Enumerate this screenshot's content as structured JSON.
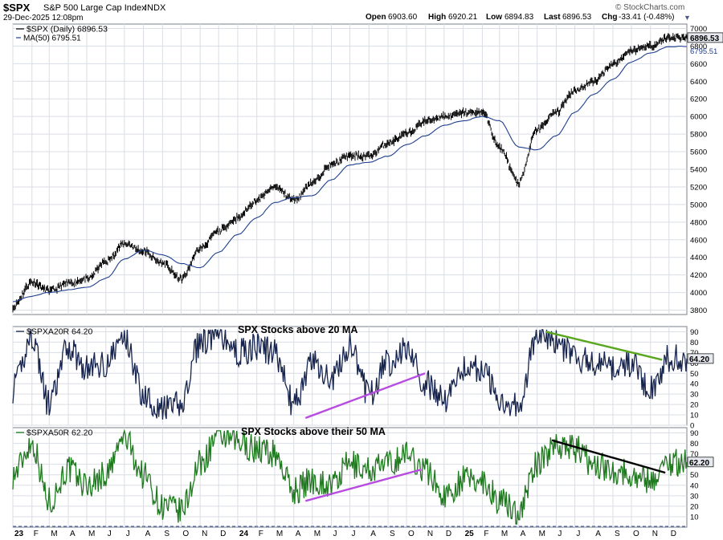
{
  "header": {
    "symbol": "$SPX",
    "name": "S&P 500 Large Cap Index",
    "exchange": "INDX",
    "datetime": "29-Dec-2025 12:08pm",
    "open_label": "Open",
    "open": "6903.60",
    "high_label": "High",
    "high": "6920.21",
    "low_label": "Low",
    "low": "6894.83",
    "last_label": "Last",
    "last": "6896.53",
    "chg_label": "Chg",
    "chg": "-33.41 (-0.48%)",
    "brand": "© StockCharts.com"
  },
  "colors": {
    "price": "#000000",
    "ma": "#1f3f8f",
    "breadth20": "#16244e",
    "breadth50": "#1f7a1f",
    "trend_purple": "#b84be0",
    "trend_green": "#5aa61e",
    "trend_black": "#000000",
    "grid": "#d9dde4",
    "label_fill": "#e6e9ef"
  },
  "chart_data": [
    {
      "type": "line",
      "panel": "price",
      "legend_main": "$SPX (Daily) 6896.53",
      "legend_ma": "MA(50) 6795.51",
      "last_value_label": "6896.53",
      "ma_value_label": "6795.51",
      "ylim": [
        3750,
        7050
      ],
      "yticks": [
        "3800",
        "4000",
        "4200",
        "4400",
        "4600",
        "4800",
        "5000",
        "5200",
        "5400",
        "5600",
        "5800",
        "6000",
        "6200",
        "6400",
        "6600",
        "6800",
        "7000"
      ],
      "x": [
        "2023-01",
        "2023-02",
        "2023-03",
        "2023-04",
        "2023-05",
        "2023-06",
        "2023-07",
        "2023-08",
        "2023-09",
        "2023-10",
        "2023-11",
        "2023-12",
        "2024-01",
        "2024-02",
        "2024-03",
        "2024-04",
        "2024-05",
        "2024-06",
        "2024-07",
        "2024-08",
        "2024-09",
        "2024-10",
        "2024-11",
        "2024-12",
        "2025-01",
        "2025-02",
        "2025-03",
        "2025-04",
        "2025-05",
        "2025-06",
        "2025-07",
        "2025-08",
        "2025-09",
        "2025-10",
        "2025-11",
        "2025-12"
      ],
      "series": [
        {
          "values": [
            3840,
            4120,
            4020,
            4110,
            4150,
            4350,
            4560,
            4470,
            4330,
            4150,
            4500,
            4700,
            4850,
            5050,
            5200,
            5050,
            5250,
            5450,
            5550,
            5550,
            5700,
            5800,
            5950,
            6000,
            6040,
            6050,
            5650,
            5250,
            5850,
            6050,
            6300,
            6400,
            6600,
            6750,
            6800,
            6896
          ]
        },
        {
          "name": "MA(50)",
          "values": [
            3900,
            3960,
            4000,
            4030,
            4060,
            4160,
            4380,
            4480,
            4430,
            4330,
            4280,
            4460,
            4660,
            4850,
            5020,
            5080,
            5100,
            5280,
            5450,
            5480,
            5550,
            5680,
            5780,
            5900,
            5950,
            6000,
            5950,
            5650,
            5620,
            5780,
            6050,
            6250,
            6420,
            6620,
            6720,
            6795
          ]
        }
      ]
    },
    {
      "type": "line",
      "panel": "breadth20",
      "title": "SPX Stocks above 20 MA",
      "legend": "$SPXA20R 64.20",
      "last_value_label": "64.20",
      "ylim": [
        0,
        95
      ],
      "yticks": [
        "0",
        "10",
        "20",
        "30",
        "40",
        "50",
        "60",
        "70",
        "80",
        "90"
      ],
      "x": [
        "2023-01",
        "2023-02",
        "2023-03",
        "2023-04",
        "2023-05",
        "2023-06",
        "2023-07",
        "2023-08",
        "2023-09",
        "2023-10",
        "2023-11",
        "2023-12",
        "2024-01",
        "2024-02",
        "2024-03",
        "2024-04",
        "2024-05",
        "2024-06",
        "2024-07",
        "2024-08",
        "2024-09",
        "2024-10",
        "2024-11",
        "2024-12",
        "2025-01",
        "2025-02",
        "2025-03",
        "2025-04",
        "2025-05",
        "2025-06",
        "2025-07",
        "2025-08",
        "2025-09",
        "2025-10",
        "2025-11",
        "2025-12"
      ],
      "series": [
        {
          "values": [
            35,
            85,
            20,
            75,
            55,
            60,
            85,
            30,
            15,
            20,
            80,
            88,
            70,
            75,
            70,
            20,
            60,
            45,
            75,
            30,
            60,
            75,
            40,
            25,
            55,
            55,
            25,
            20,
            85,
            80,
            65,
            60,
            55,
            60,
            35,
            64.2
          ]
        }
      ],
      "trendlines": [
        {
          "color": "trend_purple",
          "from": {
            "x": "2024-04-20",
            "y": 7
          },
          "to": {
            "x": "2024-10-31",
            "y": 50
          }
        },
        {
          "color": "trend_green",
          "from": {
            "x": "2025-05-15",
            "y": 90
          },
          "to": {
            "x": "2025-11-20",
            "y": 63
          }
        }
      ]
    },
    {
      "type": "line",
      "panel": "breadth50",
      "title": "SPX Stocks above their 50 MA",
      "legend": "$SPXA50R 62.20",
      "last_value_label": "62.20",
      "ylim": [
        0,
        95
      ],
      "yticks": [
        "10",
        "20",
        "30",
        "40",
        "50",
        "60",
        "70",
        "80",
        "90"
      ],
      "x": [
        "2023-01",
        "2023-02",
        "2023-03",
        "2023-04",
        "2023-05",
        "2023-06",
        "2023-07",
        "2023-08",
        "2023-09",
        "2023-10",
        "2023-11",
        "2023-12",
        "2024-01",
        "2024-02",
        "2024-03",
        "2024-04",
        "2024-05",
        "2024-06",
        "2024-07",
        "2024-08",
        "2024-09",
        "2024-10",
        "2024-11",
        "2024-12",
        "2025-01",
        "2025-02",
        "2025-03",
        "2025-04",
        "2025-05",
        "2025-06",
        "2025-07",
        "2025-08",
        "2025-09",
        "2025-10",
        "2025-11",
        "2025-12"
      ],
      "series": [
        {
          "values": [
            50,
            80,
            25,
            55,
            40,
            50,
            85,
            50,
            20,
            15,
            60,
            88,
            80,
            75,
            70,
            35,
            45,
            40,
            60,
            55,
            60,
            70,
            55,
            30,
            45,
            45,
            25,
            15,
            60,
            80,
            75,
            60,
            55,
            50,
            45,
            62.2
          ]
        }
      ],
      "trendlines": [
        {
          "color": "trend_purple",
          "from": {
            "x": "2024-04-20",
            "y": 25
          },
          "to": {
            "x": "2024-10-25",
            "y": 55
          }
        },
        {
          "color": "trend_black",
          "from": {
            "x": "2025-05-25",
            "y": 83
          },
          "to": {
            "x": "2025-11-25",
            "y": 52
          }
        }
      ]
    }
  ],
  "x_axis": {
    "labels": [
      {
        "d": "2023-01",
        "t": "23",
        "bold": true
      },
      {
        "d": "2023-02",
        "t": "F"
      },
      {
        "d": "2023-03",
        "t": "M"
      },
      {
        "d": "2023-04",
        "t": "A"
      },
      {
        "d": "2023-05",
        "t": "M"
      },
      {
        "d": "2023-06",
        "t": "J"
      },
      {
        "d": "2023-07",
        "t": "J"
      },
      {
        "d": "2023-08",
        "t": "A"
      },
      {
        "d": "2023-09",
        "t": "S"
      },
      {
        "d": "2023-10",
        "t": "O"
      },
      {
        "d": "2023-11",
        "t": "N"
      },
      {
        "d": "2023-12",
        "t": "D"
      },
      {
        "d": "2024-01",
        "t": "24",
        "bold": true
      },
      {
        "d": "2024-02",
        "t": "F"
      },
      {
        "d": "2024-03",
        "t": "M"
      },
      {
        "d": "2024-04",
        "t": "A"
      },
      {
        "d": "2024-05",
        "t": "M"
      },
      {
        "d": "2024-06",
        "t": "J"
      },
      {
        "d": "2024-07",
        "t": "J"
      },
      {
        "d": "2024-08",
        "t": "A"
      },
      {
        "d": "2024-09",
        "t": "S"
      },
      {
        "d": "2024-10",
        "t": "O"
      },
      {
        "d": "2024-11",
        "t": "N"
      },
      {
        "d": "2024-12",
        "t": "D"
      },
      {
        "d": "2025-01",
        "t": "25",
        "bold": true
      },
      {
        "d": "2025-02",
        "t": "F"
      },
      {
        "d": "2025-03",
        "t": "M"
      },
      {
        "d": "2025-04",
        "t": "A"
      },
      {
        "d": "2025-05",
        "t": "M"
      },
      {
        "d": "2025-06",
        "t": "J"
      },
      {
        "d": "2025-07",
        "t": "J"
      },
      {
        "d": "2025-08",
        "t": "A"
      },
      {
        "d": "2025-09",
        "t": "S"
      },
      {
        "d": "2025-10",
        "t": "O"
      },
      {
        "d": "2025-11",
        "t": "N"
      },
      {
        "d": "2025-12",
        "t": "D"
      }
    ]
  }
}
